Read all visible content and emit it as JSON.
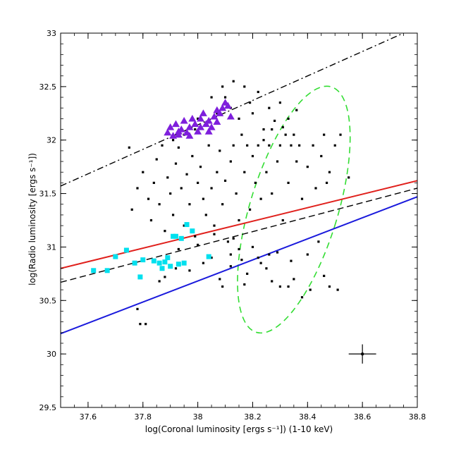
{
  "chart_data": {
    "type": "scatter",
    "title": "",
    "xlabel": "log(Coronal luminosity [ergs s⁻¹]) (1-10 keV)",
    "ylabel": "log(Radio luminosity [ergs s⁻¹])",
    "xlim": [
      37.5,
      38.8
    ],
    "ylim": [
      29.5,
      33.0
    ],
    "grid": false,
    "legend": "none",
    "x_ticks": [
      {
        "value": 37.6,
        "label": "37.6"
      },
      {
        "value": 37.8,
        "label": "37.8"
      },
      {
        "value": 38.0,
        "label": "38"
      },
      {
        "value": 38.2,
        "label": "38.2"
      },
      {
        "value": 38.4,
        "label": "38.4"
      },
      {
        "value": 38.6,
        "label": "38.6"
      },
      {
        "value": 38.8,
        "label": "38.8"
      }
    ],
    "y_ticks": [
      {
        "value": 29.5,
        "label": "29.5"
      },
      {
        "value": 30.0,
        "label": "30"
      },
      {
        "value": 30.5,
        "label": "30.5"
      },
      {
        "value": 31.0,
        "label": "31"
      },
      {
        "value": 31.5,
        "label": "31.5"
      },
      {
        "value": 32.0,
        "label": "32"
      },
      {
        "value": 32.5,
        "label": "32.5"
      },
      {
        "value": 33.0,
        "label": "33"
      }
    ],
    "lines": [
      {
        "name": "dash-dot fit",
        "color": "#000000",
        "style": "dashdot",
        "x": [
          37.5,
          38.75
        ],
        "y": [
          31.57,
          33.0
        ]
      },
      {
        "name": "red fit",
        "color": "#e0201c",
        "style": "solid",
        "x": [
          37.5,
          38.8
        ],
        "y": [
          30.8,
          31.62
        ]
      },
      {
        "name": "dashed fit",
        "color": "#000000",
        "style": "dashed",
        "x": [
          37.5,
          38.8
        ],
        "y": [
          30.67,
          31.55
        ]
      },
      {
        "name": "blue fit",
        "color": "#1a1adc",
        "style": "solid",
        "x": [
          37.5,
          38.8
        ],
        "y": [
          30.19,
          31.47
        ]
      }
    ],
    "ellipse": {
      "name": "green dashed region",
      "color": "#33dd33",
      "center_x": 38.35,
      "center_y": 31.35,
      "semi_x": 0.16,
      "semi_y": 1.2,
      "tilt_deg": 17
    },
    "error_bar": {
      "x": 38.6,
      "y": 30.0,
      "x_err": 0.05,
      "y_err": 0.09,
      "color": "#000000"
    },
    "series": [
      {
        "name": "black squares",
        "color": "#000000",
        "marker": "square-small",
        "points": [
          [
            37.75,
            31.93
          ],
          [
            37.78,
            31.55
          ],
          [
            37.76,
            31.35
          ],
          [
            37.8,
            31.7
          ],
          [
            37.82,
            31.45
          ],
          [
            37.84,
            31.6
          ],
          [
            37.83,
            31.25
          ],
          [
            37.85,
            31.82
          ],
          [
            37.86,
            31.4
          ],
          [
            37.87,
            31.95
          ],
          [
            37.88,
            31.15
          ],
          [
            37.89,
            31.65
          ],
          [
            37.9,
            31.5
          ],
          [
            37.91,
            31.3
          ],
          [
            37.92,
            31.78
          ],
          [
            37.93,
            31.93
          ],
          [
            37.94,
            31.55
          ],
          [
            37.95,
            31.2
          ],
          [
            37.96,
            31.68
          ],
          [
            37.97,
            31.4
          ],
          [
            37.98,
            31.85
          ],
          [
            37.99,
            31.1
          ],
          [
            38.0,
            31.6
          ],
          [
            38.01,
            31.75
          ],
          [
            38.02,
            31.45
          ],
          [
            38.03,
            31.3
          ],
          [
            38.04,
            31.95
          ],
          [
            38.05,
            31.55
          ],
          [
            38.06,
            31.2
          ],
          [
            38.07,
            31.7
          ],
          [
            38.08,
            31.9
          ],
          [
            38.09,
            31.4
          ],
          [
            38.1,
            31.62
          ],
          [
            38.11,
            31.05
          ],
          [
            38.12,
            31.8
          ],
          [
            38.13,
            31.95
          ],
          [
            38.14,
            31.5
          ],
          [
            38.15,
            31.25
          ],
          [
            38.16,
            32.05
          ],
          [
            38.17,
            31.7
          ],
          [
            38.18,
            31.95
          ],
          [
            38.19,
            31.35
          ],
          [
            38.2,
            31.85
          ],
          [
            38.21,
            31.6
          ],
          [
            38.22,
            31.95
          ],
          [
            38.23,
            31.45
          ],
          [
            38.24,
            32.1
          ],
          [
            38.25,
            31.7
          ],
          [
            38.26,
            31.95
          ],
          [
            38.27,
            31.5
          ],
          [
            38.28,
            32.18
          ],
          [
            38.29,
            31.8
          ],
          [
            38.3,
            31.95
          ],
          [
            38.31,
            31.25
          ],
          [
            38.32,
            32.05
          ],
          [
            38.33,
            31.6
          ],
          [
            38.34,
            31.95
          ],
          [
            38.36,
            31.8
          ],
          [
            38.37,
            31.95
          ],
          [
            38.4,
            31.75
          ],
          [
            38.42,
            31.95
          ],
          [
            38.45,
            31.85
          ],
          [
            38.47,
            31.6
          ],
          [
            38.5,
            31.95
          ],
          [
            38.52,
            32.05
          ],
          [
            38.55,
            31.65
          ],
          [
            38.43,
            31.55
          ],
          [
            38.46,
            32.05
          ],
          [
            38.48,
            31.7
          ],
          [
            38.38,
            31.45
          ],
          [
            37.91,
            32.0
          ],
          [
            37.95,
            32.05
          ],
          [
            37.99,
            32.1
          ],
          [
            38.03,
            32.15
          ],
          [
            38.07,
            32.25
          ],
          [
            38.1,
            32.4
          ],
          [
            38.12,
            32.3
          ],
          [
            38.15,
            32.2
          ],
          [
            38.19,
            32.35
          ],
          [
            38.22,
            32.45
          ],
          [
            38.26,
            32.3
          ],
          [
            38.3,
            32.35
          ],
          [
            38.33,
            32.2
          ],
          [
            38.13,
            32.55
          ],
          [
            38.17,
            32.5
          ],
          [
            38.05,
            32.4
          ],
          [
            38.27,
            32.1
          ],
          [
            38.35,
            32.05
          ],
          [
            38.2,
            32.25
          ],
          [
            38.09,
            32.5
          ],
          [
            38.0,
            32.2
          ],
          [
            38.24,
            32.0
          ],
          [
            38.31,
            32.12
          ],
          [
            38.36,
            32.28
          ],
          [
            37.78,
            30.42
          ],
          [
            37.79,
            30.28
          ],
          [
            37.81,
            30.28
          ],
          [
            37.86,
            30.68
          ],
          [
            37.88,
            30.72
          ],
          [
            37.92,
            30.8
          ],
          [
            37.95,
            30.85
          ],
          [
            37.97,
            30.78
          ],
          [
            38.02,
            30.85
          ],
          [
            38.05,
            30.9
          ],
          [
            38.08,
            30.7
          ],
          [
            38.12,
            30.82
          ],
          [
            38.15,
            30.98
          ],
          [
            38.18,
            30.75
          ],
          [
            38.2,
            31.0
          ],
          [
            38.22,
            30.9
          ],
          [
            38.25,
            30.8
          ],
          [
            38.27,
            30.68
          ],
          [
            38.3,
            30.63
          ],
          [
            38.33,
            30.63
          ],
          [
            38.35,
            30.7
          ],
          [
            38.38,
            30.53
          ],
          [
            38.41,
            30.6
          ],
          [
            38.46,
            30.73
          ],
          [
            38.48,
            30.63
          ],
          [
            38.51,
            30.6
          ],
          [
            38.13,
            31.08
          ],
          [
            38.17,
            30.65
          ],
          [
            38.23,
            30.85
          ],
          [
            38.29,
            30.95
          ],
          [
            38.34,
            30.87
          ],
          [
            38.4,
            30.93
          ],
          [
            38.44,
            31.05
          ],
          [
            38.12,
            30.93
          ],
          [
            38.06,
            31.12
          ],
          [
            38.0,
            31.02
          ],
          [
            37.93,
            30.98
          ],
          [
            38.09,
            30.63
          ],
          [
            38.16,
            30.88
          ],
          [
            38.26,
            30.93
          ]
        ]
      },
      {
        "name": "purple triangles",
        "color": "#7e1fdc",
        "marker": "triangle",
        "points": [
          [
            37.89,
            32.07
          ],
          [
            37.9,
            32.12
          ],
          [
            37.91,
            32.04
          ],
          [
            37.92,
            32.15
          ],
          [
            37.93,
            32.08
          ],
          [
            37.94,
            32.1
          ],
          [
            37.95,
            32.18
          ],
          [
            37.96,
            32.07
          ],
          [
            37.97,
            32.12
          ],
          [
            37.98,
            32.2
          ],
          [
            37.99,
            32.15
          ],
          [
            38.0,
            32.08
          ],
          [
            38.01,
            32.2
          ],
          [
            38.02,
            32.25
          ],
          [
            38.03,
            32.15
          ],
          [
            38.04,
            32.18
          ],
          [
            38.05,
            32.12
          ],
          [
            38.06,
            32.22
          ],
          [
            38.07,
            32.17
          ],
          [
            38.08,
            32.25
          ],
          [
            38.09,
            32.3
          ],
          [
            38.1,
            32.35
          ],
          [
            38.11,
            32.32
          ],
          [
            38.12,
            32.22
          ],
          [
            37.93,
            32.05
          ],
          [
            37.97,
            32.04
          ],
          [
            38.01,
            32.12
          ],
          [
            38.04,
            32.08
          ],
          [
            38.07,
            32.28
          ]
        ]
      },
      {
        "name": "cyan squares",
        "color": "#00e0ee",
        "marker": "square",
        "points": [
          [
            37.62,
            30.78
          ],
          [
            37.67,
            30.78
          ],
          [
            37.7,
            30.91
          ],
          [
            37.74,
            30.97
          ],
          [
            37.77,
            30.85
          ],
          [
            37.79,
            30.72
          ],
          [
            37.8,
            30.88
          ],
          [
            37.84,
            30.87
          ],
          [
            37.86,
            30.85
          ],
          [
            37.87,
            30.8
          ],
          [
            37.88,
            30.86
          ],
          [
            37.89,
            30.9
          ],
          [
            37.9,
            30.82
          ],
          [
            37.91,
            31.1
          ],
          [
            37.92,
            31.1
          ],
          [
            37.93,
            30.84
          ],
          [
            37.94,
            31.08
          ],
          [
            37.95,
            30.85
          ],
          [
            37.96,
            31.21
          ],
          [
            37.98,
            31.15
          ],
          [
            38.04,
            30.91
          ]
        ]
      }
    ]
  }
}
